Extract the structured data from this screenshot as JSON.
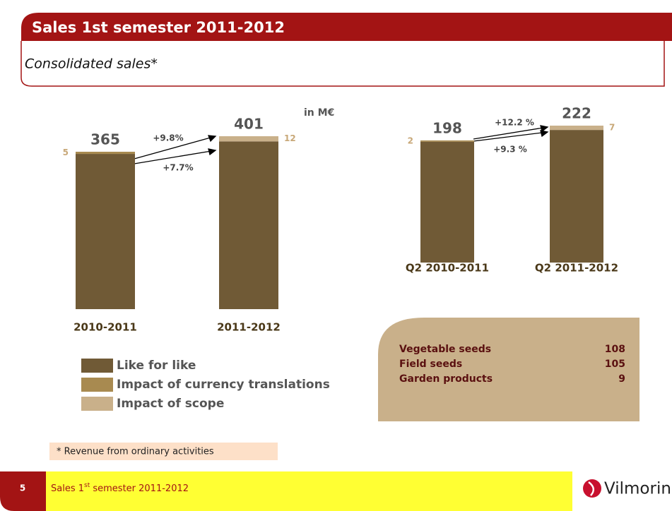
{
  "header": {
    "title": "Sales 1st semester 2011-2012",
    "subtitle": "Consolidated sales*",
    "unit": "in M€"
  },
  "chart_data": [
    {
      "type": "bar",
      "stacked": true,
      "categories": [
        "2010-2011",
        "2011-2012"
      ],
      "series": [
        {
          "name": "Like for like",
          "color": "#705a36",
          "values": [
            360,
            389
          ]
        },
        {
          "name": "Impact of currency translations",
          "color": "#a88a50",
          "values": [
            5,
            null
          ]
        },
        {
          "name": "Impact of scope",
          "color": "#c9b08a",
          "values": [
            null,
            12
          ]
        }
      ],
      "totals": [
        365,
        401
      ],
      "annotations": [
        "+9.8%",
        "+7.7%"
      ]
    },
    {
      "type": "bar",
      "stacked": true,
      "categories": [
        "Q2 2010-2011",
        "Q2 2011-2012"
      ],
      "series": [
        {
          "name": "Like for like",
          "color": "#705a36",
          "values": [
            196,
            215
          ]
        },
        {
          "name": "Impact of currency translations",
          "color": "#a88a50",
          "values": [
            2,
            null
          ]
        },
        {
          "name": "Impact of scope",
          "color": "#c9b08a",
          "values": [
            null,
            7
          ]
        }
      ],
      "totals": [
        198,
        222
      ],
      "annotations": [
        "+12.2 %",
        "+9.3 %"
      ]
    }
  ],
  "table": {
    "rows": [
      [
        "Vegetable seeds",
        "108"
      ],
      [
        "Field seeds",
        "105"
      ],
      [
        "Garden products",
        "9"
      ]
    ]
  },
  "footnote": "* Revenue from ordinary activities",
  "footer": {
    "page": "5",
    "text": [
      "Sales 1",
      "st",
      " semester 2011-2012"
    ],
    "logo": "Vilmorin"
  }
}
